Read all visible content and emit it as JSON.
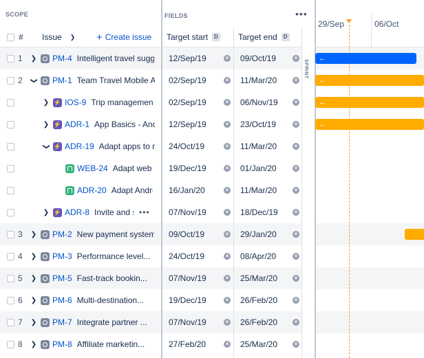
{
  "header": {
    "scope": "SCOPE",
    "fields": "FIELDS",
    "more": "•••",
    "rank_col": "#",
    "issue_col": "Issue",
    "create_issue": "Create issue",
    "target_start": "Target start",
    "target_end": "Target end",
    "date_badge": "D"
  },
  "sprint_label": "SPRINT",
  "timeline": {
    "dates": [
      "29/Sep",
      "06/Oct"
    ]
  },
  "rows": [
    {
      "rank": "1",
      "key": "PM-4",
      "summary": "Intelligent travel suggestions",
      "start": "12/Sep/19",
      "end": "09/Oct/19"
    },
    {
      "rank": "2",
      "key": "PM-1",
      "summary": "Team Travel Mobile App",
      "start": "02/Sep/19",
      "end": "11/Mar/20"
    },
    {
      "rank": "",
      "key": "IOS-9",
      "summary": "Trip management",
      "start": "02/Sep/19",
      "end": "06/Nov/19"
    },
    {
      "rank": "",
      "key": "ADR-1",
      "summary": "App Basics - Android",
      "start": "12/Sep/19",
      "end": "23/Oct/19"
    },
    {
      "rank": "",
      "key": "ADR-19",
      "summary": "Adapt apps to mobile",
      "start": "24/Oct/19",
      "end": "11/Mar/20"
    },
    {
      "rank": "",
      "key": "WEB-24",
      "summary": "Adapt web",
      "start": "19/Dec/19",
      "end": "01/Jan/20"
    },
    {
      "rank": "",
      "key": "ADR-20",
      "summary": "Adapt Android",
      "start": "16/Jan/20",
      "end": "11/Mar/20"
    },
    {
      "rank": "",
      "key": "ADR-8",
      "summary": "Invite and share",
      "more": "•••",
      "start": "07/Nov/19",
      "end": "18/Dec/19"
    },
    {
      "rank": "3",
      "key": "PM-2",
      "summary": "New payment system",
      "start": "09/Oct/19",
      "end": "29/Jan/20"
    },
    {
      "rank": "4",
      "key": "PM-3",
      "summary": "Performance level...",
      "start": "24/Oct/19",
      "end": "08/Apr/20"
    },
    {
      "rank": "5",
      "key": "PM-5",
      "summary": "Fast-track bookin...",
      "start": "07/Nov/19",
      "end": "25/Mar/20"
    },
    {
      "rank": "6",
      "key": "PM-6",
      "summary": "Multi-destination...",
      "start": "19/Dec/19",
      "end": "26/Feb/20"
    },
    {
      "rank": "7",
      "key": "PM-7",
      "summary": "Integrate partner ...",
      "start": "07/Nov/19",
      "end": "26/Feb/20"
    },
    {
      "rank": "8",
      "key": "PM-8",
      "summary": "Affiliate marketin...",
      "start": "27/Feb/20",
      "end": "25/Mar/20"
    }
  ],
  "colors": {
    "blue_bar": "#0065ff",
    "orange_bar": "#ffab00",
    "today_line": "#ff991f",
    "link": "#0052cc"
  }
}
